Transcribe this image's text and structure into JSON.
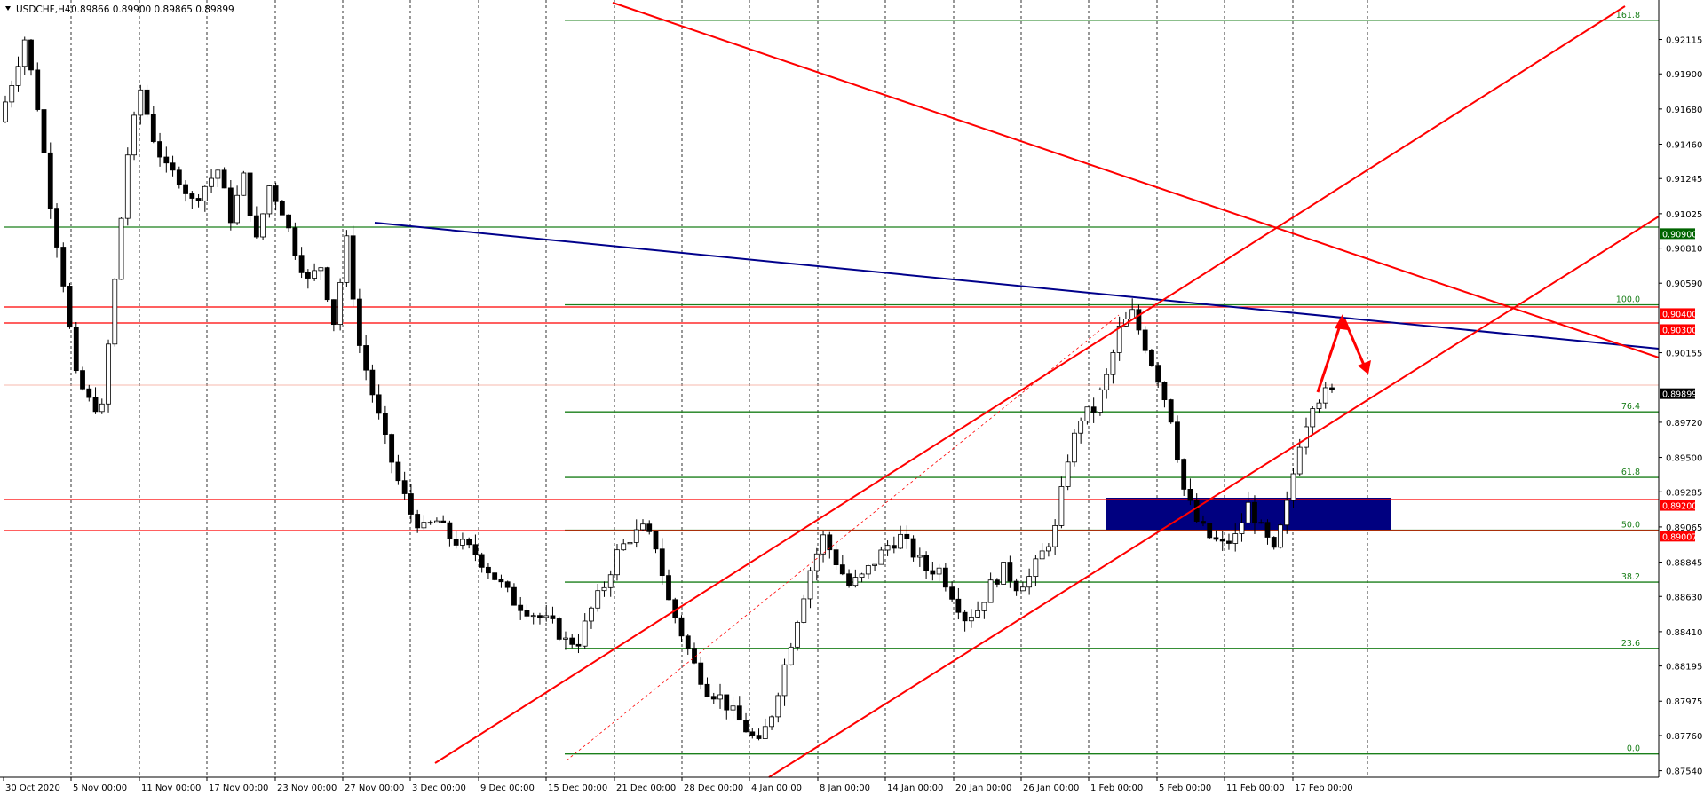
{
  "header": {
    "symbol": "USDCHF,H4",
    "ohlc": "0.89866 0.89900 0.89865 0.89899"
  },
  "colors": {
    "up_candle": "#ffffff",
    "down_candle": "#000000",
    "grid": "#000000",
    "fib": "#1a7f1a",
    "resistance": "#ff0000",
    "trendline": "#00008b",
    "zone": "#000080",
    "current_price_tag": "#000000",
    "green_tag": "#006400",
    "red_tag": "#ff0000"
  },
  "chart_data": {
    "type": "candlestick",
    "title": "USDCHF,H4",
    "y_ticks": [
      "0.92115",
      "0.91900",
      "0.91680",
      "0.91460",
      "0.91245",
      "0.91025",
      "0.90810",
      "0.90590",
      "0.90155",
      "0.89720",
      "0.89500",
      "0.89285",
      "0.89065",
      "0.88845",
      "0.88630",
      "0.88410",
      "0.88195",
      "0.87975",
      "0.87760",
      "0.87540"
    ],
    "ylim": [
      0.8751,
      0.9224
    ],
    "x_ticks": [
      "30 Oct 2020",
      "5 Nov 00:00",
      "11 Nov 00:00",
      "17 Nov 00:00",
      "23 Nov 00:00",
      "27 Nov 00:00",
      "3 Dec 00:00",
      "9 Dec 00:00",
      "15 Dec 00:00",
      "21 Dec 00:00",
      "28 Dec 00:00",
      "4 Jan 00:00",
      "8 Jan 00:00",
      "14 Jan 00:00",
      "20 Jan 00:00",
      "26 Jan 00:00",
      "1 Feb 00:00",
      "5 Feb 00:00",
      "11 Feb 00:00",
      "17 Feb 00:00"
    ],
    "price_path": [
      [
        0,
        0.916
      ],
      [
        2,
        0.9185
      ],
      [
        4,
        0.9212
      ],
      [
        6,
        0.917
      ],
      [
        8,
        0.911
      ],
      [
        10,
        0.906
      ],
      [
        12,
        0.9
      ],
      [
        14,
        0.8985
      ],
      [
        16,
        0.898
      ],
      [
        18,
        0.906
      ],
      [
        20,
        0.914
      ],
      [
        22,
        0.918
      ],
      [
        24,
        0.915
      ],
      [
        26,
        0.913
      ],
      [
        28,
        0.9125
      ],
      [
        30,
        0.911
      ],
      [
        32,
        0.912
      ],
      [
        34,
        0.913
      ],
      [
        36,
        0.91
      ],
      [
        38,
        0.9125
      ],
      [
        40,
        0.9085
      ],
      [
        42,
        0.912
      ],
      [
        44,
        0.9105
      ],
      [
        46,
        0.908
      ],
      [
        48,
        0.906
      ],
      [
        50,
        0.907
      ],
      [
        52,
        0.9035
      ],
      [
        54,
        0.9085
      ],
      [
        56,
        0.902
      ],
      [
        58,
        0.899
      ],
      [
        60,
        0.896
      ],
      [
        62,
        0.8935
      ],
      [
        64,
        0.8915
      ],
      [
        66,
        0.8905
      ],
      [
        68,
        0.891
      ],
      [
        70,
        0.89
      ],
      [
        72,
        0.8895
      ],
      [
        74,
        0.889
      ],
      [
        76,
        0.888
      ],
      [
        78,
        0.887
      ],
      [
        80,
        0.886
      ],
      [
        82,
        0.8855
      ],
      [
        84,
        0.885
      ],
      [
        86,
        0.8845
      ],
      [
        88,
        0.8835
      ],
      [
        90,
        0.8835
      ],
      [
        92,
        0.8855
      ],
      [
        94,
        0.887
      ],
      [
        96,
        0.889
      ],
      [
        98,
        0.89
      ],
      [
        100,
        0.8905
      ],
      [
        102,
        0.8895
      ],
      [
        104,
        0.886
      ],
      [
        106,
        0.884
      ],
      [
        108,
        0.882
      ],
      [
        110,
        0.8805
      ],
      [
        112,
        0.88
      ],
      [
        114,
        0.879
      ],
      [
        116,
        0.878
      ],
      [
        118,
        0.877
      ],
      [
        120,
        0.879
      ],
      [
        122,
        0.882
      ],
      [
        124,
        0.885
      ],
      [
        126,
        0.888
      ],
      [
        128,
        0.89
      ],
      [
        130,
        0.8885
      ],
      [
        132,
        0.887
      ],
      [
        134,
        0.8875
      ],
      [
        136,
        0.8885
      ],
      [
        138,
        0.8895
      ],
      [
        140,
        0.89
      ],
      [
        142,
        0.889
      ],
      [
        144,
        0.888
      ],
      [
        146,
        0.888
      ],
      [
        148,
        0.8865
      ],
      [
        150,
        0.885
      ],
      [
        152,
        0.8855
      ],
      [
        154,
        0.887
      ],
      [
        156,
        0.888
      ],
      [
        158,
        0.887
      ],
      [
        160,
        0.8875
      ],
      [
        162,
        0.889
      ],
      [
        164,
        0.8905
      ],
      [
        166,
        0.895
      ],
      [
        168,
        0.8975
      ],
      [
        170,
        0.898
      ],
      [
        172,
        0.9
      ],
      [
        174,
        0.903
      ],
      [
        176,
        0.904
      ],
      [
        178,
        0.902
      ],
      [
        180,
        0.9
      ],
      [
        182,
        0.8975
      ],
      [
        184,
        0.893
      ],
      [
        186,
        0.891
      ],
      [
        188,
        0.89
      ],
      [
        190,
        0.8895
      ],
      [
        192,
        0.89
      ],
      [
        194,
        0.892
      ],
      [
        196,
        0.8905
      ],
      [
        198,
        0.889
      ],
      [
        200,
        0.892
      ],
      [
        202,
        0.896
      ],
      [
        204,
        0.8985
      ],
      [
        206,
        0.899
      ]
    ],
    "candle_count": 207,
    "horizontal_levels": [
      {
        "name": "fib-161.8",
        "label": "161.8",
        "price": 0.92235,
        "color": "fib"
      },
      {
        "name": "fib-100",
        "label": "100.0",
        "price": 0.90455,
        "color": "fib"
      },
      {
        "name": "fib-76.4",
        "label": "76.4",
        "price": 0.89785,
        "color": "fib"
      },
      {
        "name": "fib-61.8",
        "label": "61.8",
        "price": 0.89375,
        "color": "fib"
      },
      {
        "name": "fib-50",
        "label": "50.0",
        "price": 0.89045,
        "color": "fib"
      },
      {
        "name": "fib-38.2",
        "label": "38.2",
        "price": 0.8872,
        "color": "fib"
      },
      {
        "name": "fib-23.6",
        "label": "23.6",
        "price": 0.88305,
        "color": "fib"
      },
      {
        "name": "fib-0",
        "label": "0.0",
        "price": 0.87645,
        "color": "fib"
      }
    ],
    "price_tags": [
      {
        "name": "tag-09090",
        "label": "0.90900",
        "price": 0.909,
        "color": "green_tag"
      },
      {
        "name": "tag-09040",
        "label": "0.90400",
        "price": 0.904,
        "color": "red_tag"
      },
      {
        "name": "tag-09030",
        "label": "0.90300",
        "price": 0.903,
        "color": "red_tag"
      },
      {
        "name": "tag-08989",
        "label": "0.89899",
        "price": 0.89899,
        "color": "current_price_tag"
      },
      {
        "name": "tag-08920",
        "label": "0.89200",
        "price": 0.892,
        "color": "red_tag"
      },
      {
        "name": "tag-08900",
        "label": "0.89007",
        "price": 0.89007,
        "color": "red_tag"
      }
    ]
  }
}
